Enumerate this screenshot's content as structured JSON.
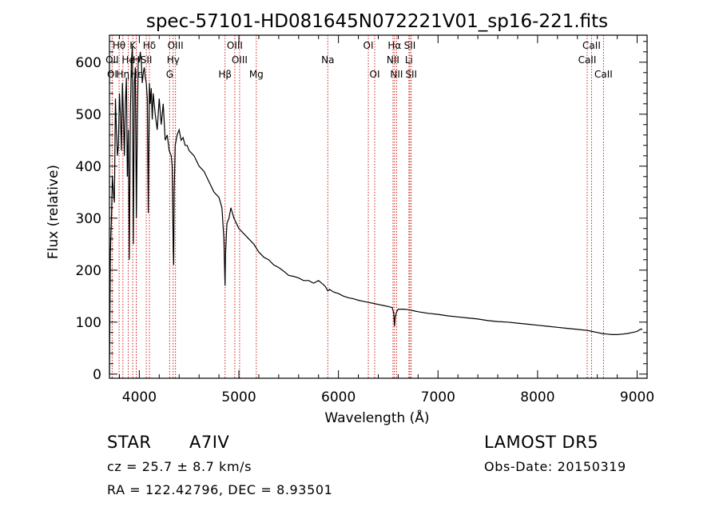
{
  "chart_data": {
    "type": "line",
    "title": "spec-57101-HD081645N072221V01_sp16-221.fits",
    "xlabel": "Wavelength (Å)",
    "ylabel": "Flux (relative)",
    "xlim": [
      3700,
      9100
    ],
    "ylim": [
      -8,
      652
    ],
    "xticks": [
      4000,
      5000,
      6000,
      7000,
      8000,
      9000
    ],
    "yticks": [
      0,
      100,
      200,
      300,
      400,
      500,
      600
    ],
    "grid": false,
    "line_colors": {
      "spectrum": "#000000",
      "markers": "#cc2222"
    },
    "series": [
      {
        "x": [
          3700,
          3710,
          3720,
          3730,
          3740,
          3750,
          3760,
          3770,
          3780,
          3790,
          3800,
          3810,
          3820,
          3830,
          3840,
          3850,
          3860,
          3870,
          3880,
          3890,
          3900,
          3910,
          3920,
          3930,
          3940,
          3950,
          3960,
          3970,
          3980,
          3990,
          4000,
          4010,
          4020,
          4030,
          4040,
          4050,
          4060,
          4070,
          4080,
          4090,
          4101,
          4110,
          4120,
          4130,
          4140,
          4160,
          4180,
          4200,
          4220,
          4240,
          4260,
          4280,
          4300,
          4320,
          4330,
          4340,
          4345,
          4350,
          4360,
          4380,
          4400,
          4420,
          4440,
          4460,
          4480,
          4500,
          4550,
          4600,
          4650,
          4700,
          4750,
          4800,
          4830,
          4850,
          4855,
          4861,
          4866,
          4872,
          4880,
          4900,
          4920,
          4950,
          5000,
          5050,
          5100,
          5150,
          5200,
          5250,
          5300,
          5350,
          5400,
          5450,
          5500,
          5550,
          5600,
          5650,
          5700,
          5750,
          5800,
          5850,
          5870,
          5893,
          5910,
          5950,
          6000,
          6050,
          6100,
          6150,
          6200,
          6250,
          6300,
          6350,
          6400,
          6450,
          6500,
          6540,
          6555,
          6563,
          6570,
          6585,
          6600,
          6650,
          6700,
          6750,
          6800,
          6900,
          7000,
          7100,
          7200,
          7300,
          7400,
          7500,
          7600,
          7700,
          7800,
          7900,
          8000,
          8100,
          8200,
          8300,
          8400,
          8500,
          8550,
          8600,
          8650,
          8700,
          8750,
          8800,
          8850,
          8900,
          8950,
          9000,
          9020,
          9040,
          9050
        ],
        "y": [
          0,
          240,
          300,
          380,
          350,
          330,
          530,
          470,
          420,
          440,
          540,
          500,
          430,
          560,
          500,
          420,
          520,
          570,
          380,
          470,
          220,
          500,
          600,
          630,
          250,
          560,
          590,
          300,
          480,
          610,
          600,
          620,
          600,
          560,
          580,
          590,
          570,
          560,
          530,
          310,
          560,
          520,
          550,
          490,
          540,
          500,
          470,
          530,
          480,
          520,
          450,
          460,
          430,
          420,
          400,
          240,
          210,
          350,
          440,
          460,
          470,
          450,
          455,
          440,
          440,
          430,
          420,
          400,
          390,
          370,
          350,
          340,
          320,
          260,
          220,
          170,
          230,
          260,
          290,
          300,
          320,
          300,
          280,
          270,
          260,
          250,
          235,
          225,
          220,
          210,
          205,
          198,
          190,
          188,
          185,
          180,
          180,
          175,
          180,
          172,
          168,
          160,
          163,
          158,
          155,
          150,
          147,
          145,
          142,
          140,
          138,
          136,
          134,
          132,
          130,
          128,
          118,
          92,
          110,
          120,
          125,
          125,
          124,
          122,
          120,
          117,
          115,
          112,
          110,
          108,
          106,
          103,
          101,
          100,
          98,
          96,
          94,
          92,
          90,
          88,
          86,
          84,
          82,
          80,
          78,
          77,
          76,
          76,
          77,
          78,
          80,
          82,
          85,
          87,
          85
        ]
      }
    ],
    "line_markers": [
      {
        "label": "Hθ",
        "x": 3797,
        "row": 0
      },
      {
        "label": "K",
        "x": 3934,
        "row": 0
      },
      {
        "label": "Hδ",
        "x": 4101,
        "row": 0
      },
      {
        "label": "OIII",
        "x": 4363,
        "row": 0
      },
      {
        "label": "OIII",
        "x": 4959,
        "row": 0
      },
      {
        "label": "OI",
        "x": 6300,
        "row": 0
      },
      {
        "label": "Hα",
        "x": 6563,
        "row": 0
      },
      {
        "label": "SII",
        "x": 6717,
        "row": 0
      },
      {
        "label": "CaII",
        "x": 8542,
        "row": 0
      },
      {
        "label": "OII",
        "x": 3727,
        "row": 1
      },
      {
        "label": "He",
        "x": 3889,
        "row": 1
      },
      {
        "label": "H",
        "x": 3969,
        "row": 1
      },
      {
        "label": "SII",
        "x": 4070,
        "row": 1
      },
      {
        "label": "Hγ",
        "x": 4340,
        "row": 1
      },
      {
        "label": "OIII",
        "x": 5007,
        "row": 1
      },
      {
        "label": "Na",
        "x": 5893,
        "row": 1
      },
      {
        "label": "NII",
        "x": 6548,
        "row": 1
      },
      {
        "label": "Li",
        "x": 6708,
        "row": 1
      },
      {
        "label": "CaII",
        "x": 8498,
        "row": 1
      },
      {
        "label": "OI",
        "x": 3728,
        "row": 2
      },
      {
        "label": "Hη",
        "x": 3835,
        "row": 2
      },
      {
        "label": "Hε",
        "x": 3970,
        "row": 2
      },
      {
        "label": "G",
        "x": 4305,
        "row": 2
      },
      {
        "label": "Hβ",
        "x": 4861,
        "row": 2
      },
      {
        "label": "Mg",
        "x": 5175,
        "row": 2
      },
      {
        "label": "OI",
        "x": 6364,
        "row": 2
      },
      {
        "label": "NII",
        "x": 6584,
        "row": 2
      },
      {
        "label": "SII",
        "x": 6731,
        "row": 2
      },
      {
        "label": "CaII",
        "x": 8662,
        "row": 2
      }
    ]
  },
  "info": {
    "class_label": "STAR",
    "subclass": "A7IV",
    "survey": "LAMOST DR5",
    "cz": "cz = 25.7 ± 8.7 km/s",
    "obs_date": "Obs-Date: 20150319",
    "coords": "RA = 122.42796, DEC =   8.93501"
  }
}
